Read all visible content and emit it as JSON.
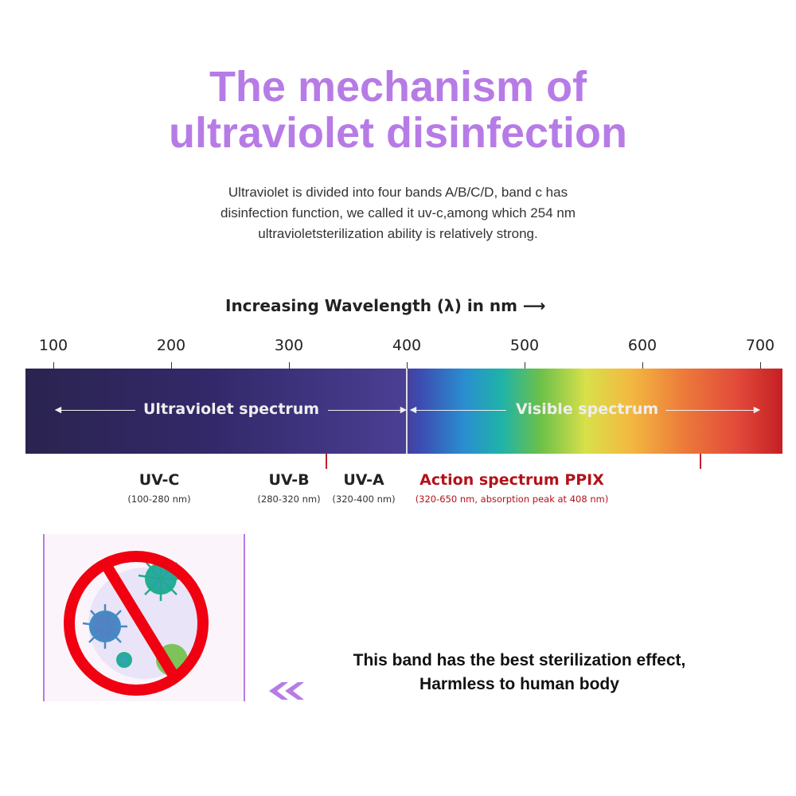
{
  "title": {
    "line1": "The mechanism of",
    "line2": "ultraviolet disinfection"
  },
  "description": {
    "line1": "Ultraviolet is divided into four bands A/B/C/D, band c has",
    "line2": "disinfection function, we called it uv-c,among which 254 nm",
    "line3": "ultravioletsterilization ability is relatively strong."
  },
  "spectrum": {
    "axis_title": "Increasing Wavelength (λ) in nm  ⟶",
    "ticks": [
      "100",
      "200",
      "300",
      "400",
      "500",
      "600",
      "700"
    ],
    "ultraviolet_label": "Ultraviolet spectrum",
    "visible_label": "Visible spectrum",
    "bands": [
      {
        "name": "UV-C",
        "range": "(100-280 nm)"
      },
      {
        "name": "UV-B",
        "range": "(280-320 nm)"
      },
      {
        "name": "UV-A",
        "range": "(320-400 nm)"
      },
      {
        "name": "Action spectrum PPIX",
        "range": "(320-650 nm, absorption peak at 408 nm)"
      }
    ],
    "colors": {
      "ppix": "#b3121b",
      "marker": "#c0202a"
    }
  },
  "illustration": {
    "icon": "no-virus-icon"
  },
  "statement": {
    "line1": "This band has the best sterilization effect,",
    "line2": "Harmless to human body"
  },
  "accent_color": "#b77be6"
}
